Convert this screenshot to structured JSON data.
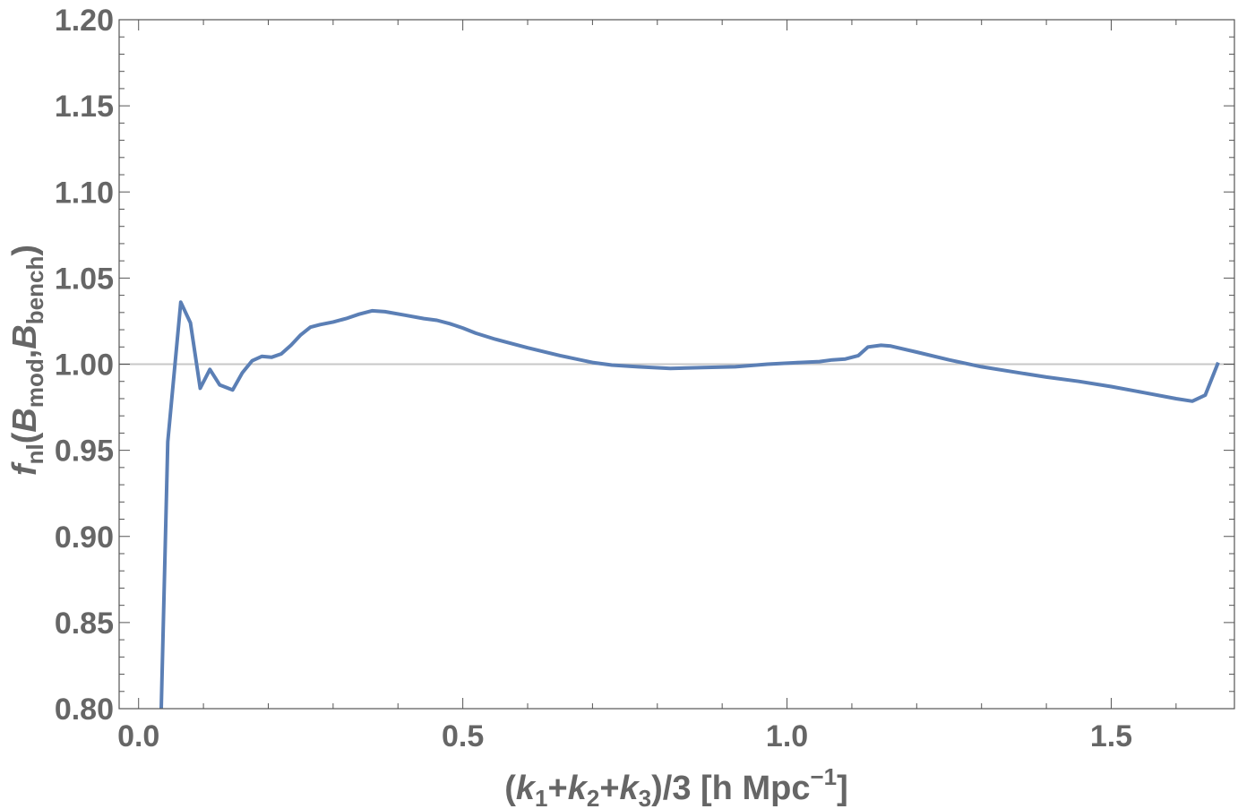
{
  "chart_data": {
    "type": "line",
    "xlabel": {
      "open": "(",
      "k": "k",
      "plus": "+",
      "sub1": "1",
      "sub2": "2",
      "sub3": "3",
      "close_div": ")/3 [h Mpc",
      "sup": "−1",
      "end": "]"
    },
    "ylabel": {
      "f": "f",
      "f_sub": "nl",
      "open": "(",
      "B": "B",
      "sub_mod": "mod",
      "comma": ",",
      "sub_bench": "bench",
      "close": ")"
    },
    "xlim": [
      -0.03,
      1.69
    ],
    "ylim": [
      0.8,
      1.2
    ],
    "x_ticks": [
      0.0,
      0.5,
      1.0,
      1.5
    ],
    "x_tick_labels": [
      "0.0",
      "0.5",
      "1.0",
      "1.5"
    ],
    "x_minor_step": 0.1,
    "y_ticks": [
      0.8,
      0.85,
      0.9,
      0.95,
      1.0,
      1.05,
      1.1,
      1.15,
      1.2
    ],
    "y_tick_labels": [
      "0.80",
      "0.85",
      "0.90",
      "0.95",
      "1.00",
      "1.05",
      "1.10",
      "1.15",
      "1.20"
    ],
    "y_minor_step": 0.01,
    "reference_line": 1.0,
    "series": [
      {
        "color": "#5b7fb5",
        "x": [
          0.035,
          0.045,
          0.065,
          0.08,
          0.095,
          0.11,
          0.125,
          0.145,
          0.16,
          0.175,
          0.19,
          0.205,
          0.22,
          0.235,
          0.25,
          0.265,
          0.28,
          0.3,
          0.32,
          0.34,
          0.36,
          0.38,
          0.41,
          0.44,
          0.46,
          0.48,
          0.5,
          0.52,
          0.55,
          0.6,
          0.65,
          0.7,
          0.73,
          0.77,
          0.82,
          0.87,
          0.92,
          0.97,
          1.02,
          1.05,
          1.07,
          1.09,
          1.11,
          1.125,
          1.145,
          1.16,
          1.2,
          1.25,
          1.3,
          1.35,
          1.4,
          1.45,
          1.5,
          1.55,
          1.6,
          1.625,
          1.645,
          1.665
        ],
        "y": [
          0.8,
          0.955,
          1.036,
          1.024,
          0.986,
          0.997,
          0.988,
          0.985,
          0.995,
          1.002,
          1.0045,
          1.004,
          1.006,
          1.011,
          1.017,
          1.0215,
          1.023,
          1.0245,
          1.0265,
          1.029,
          1.031,
          1.0305,
          1.0285,
          1.0265,
          1.0255,
          1.0235,
          1.021,
          1.018,
          1.0145,
          1.0095,
          1.005,
          1.001,
          0.9995,
          0.9985,
          0.9975,
          0.998,
          0.9985,
          1.0,
          1.001,
          1.0015,
          1.0025,
          1.003,
          1.005,
          1.01,
          1.011,
          1.0105,
          1.007,
          1.0025,
          0.9985,
          0.9955,
          0.9925,
          0.99,
          0.987,
          0.9835,
          0.98,
          0.9785,
          0.982,
          1.001
        ]
      }
    ]
  }
}
